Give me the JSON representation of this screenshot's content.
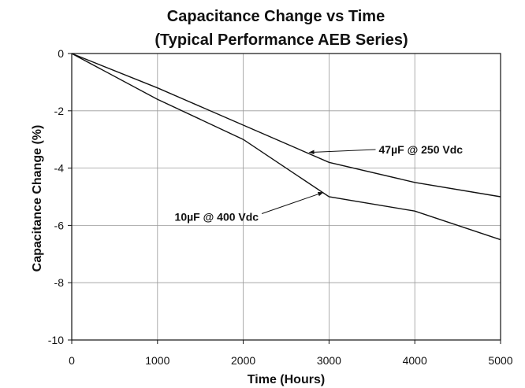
{
  "chart_data": {
    "type": "line",
    "title_lines": [
      "Capacitance Change vs Time",
      "(Typical Performance AEB Series)"
    ],
    "xlabel": "Time (Hours)",
    "ylabel": "Capacitance Change (%)",
    "xlim": [
      0,
      5000
    ],
    "ylim": [
      -10,
      0
    ],
    "xticks": [
      0,
      1000,
      2000,
      3000,
      4000,
      5000
    ],
    "yticks": [
      0,
      -2,
      -4,
      -6,
      -8,
      -10
    ],
    "grid": true,
    "legend": "none",
    "series": [
      {
        "x": [
          0,
          1000,
          2000,
          3000,
          4000,
          5000
        ],
        "values": [
          0,
          -1.2,
          -2.5,
          -3.8,
          -4.5,
          -5.0
        ]
      },
      {
        "x": [
          0,
          1000,
          2000,
          3000,
          4000,
          5000
        ],
        "values": [
          0,
          -1.6,
          -3.0,
          -5.0,
          -5.5,
          -6.5
        ]
      }
    ],
    "annotations": [
      {
        "text": "47µF @ 250 Vdc",
        "text_at": [
          3580,
          -3.35
        ],
        "arrow_to": [
          2770,
          -3.45
        ]
      },
      {
        "text": "10µF @ 400 Vdc",
        "text_at": [
          1200,
          -5.7
        ],
        "arrow_to": [
          2930,
          -4.85
        ]
      }
    ],
    "line_color": "#111111",
    "grid_color": "#9a9a9a"
  }
}
